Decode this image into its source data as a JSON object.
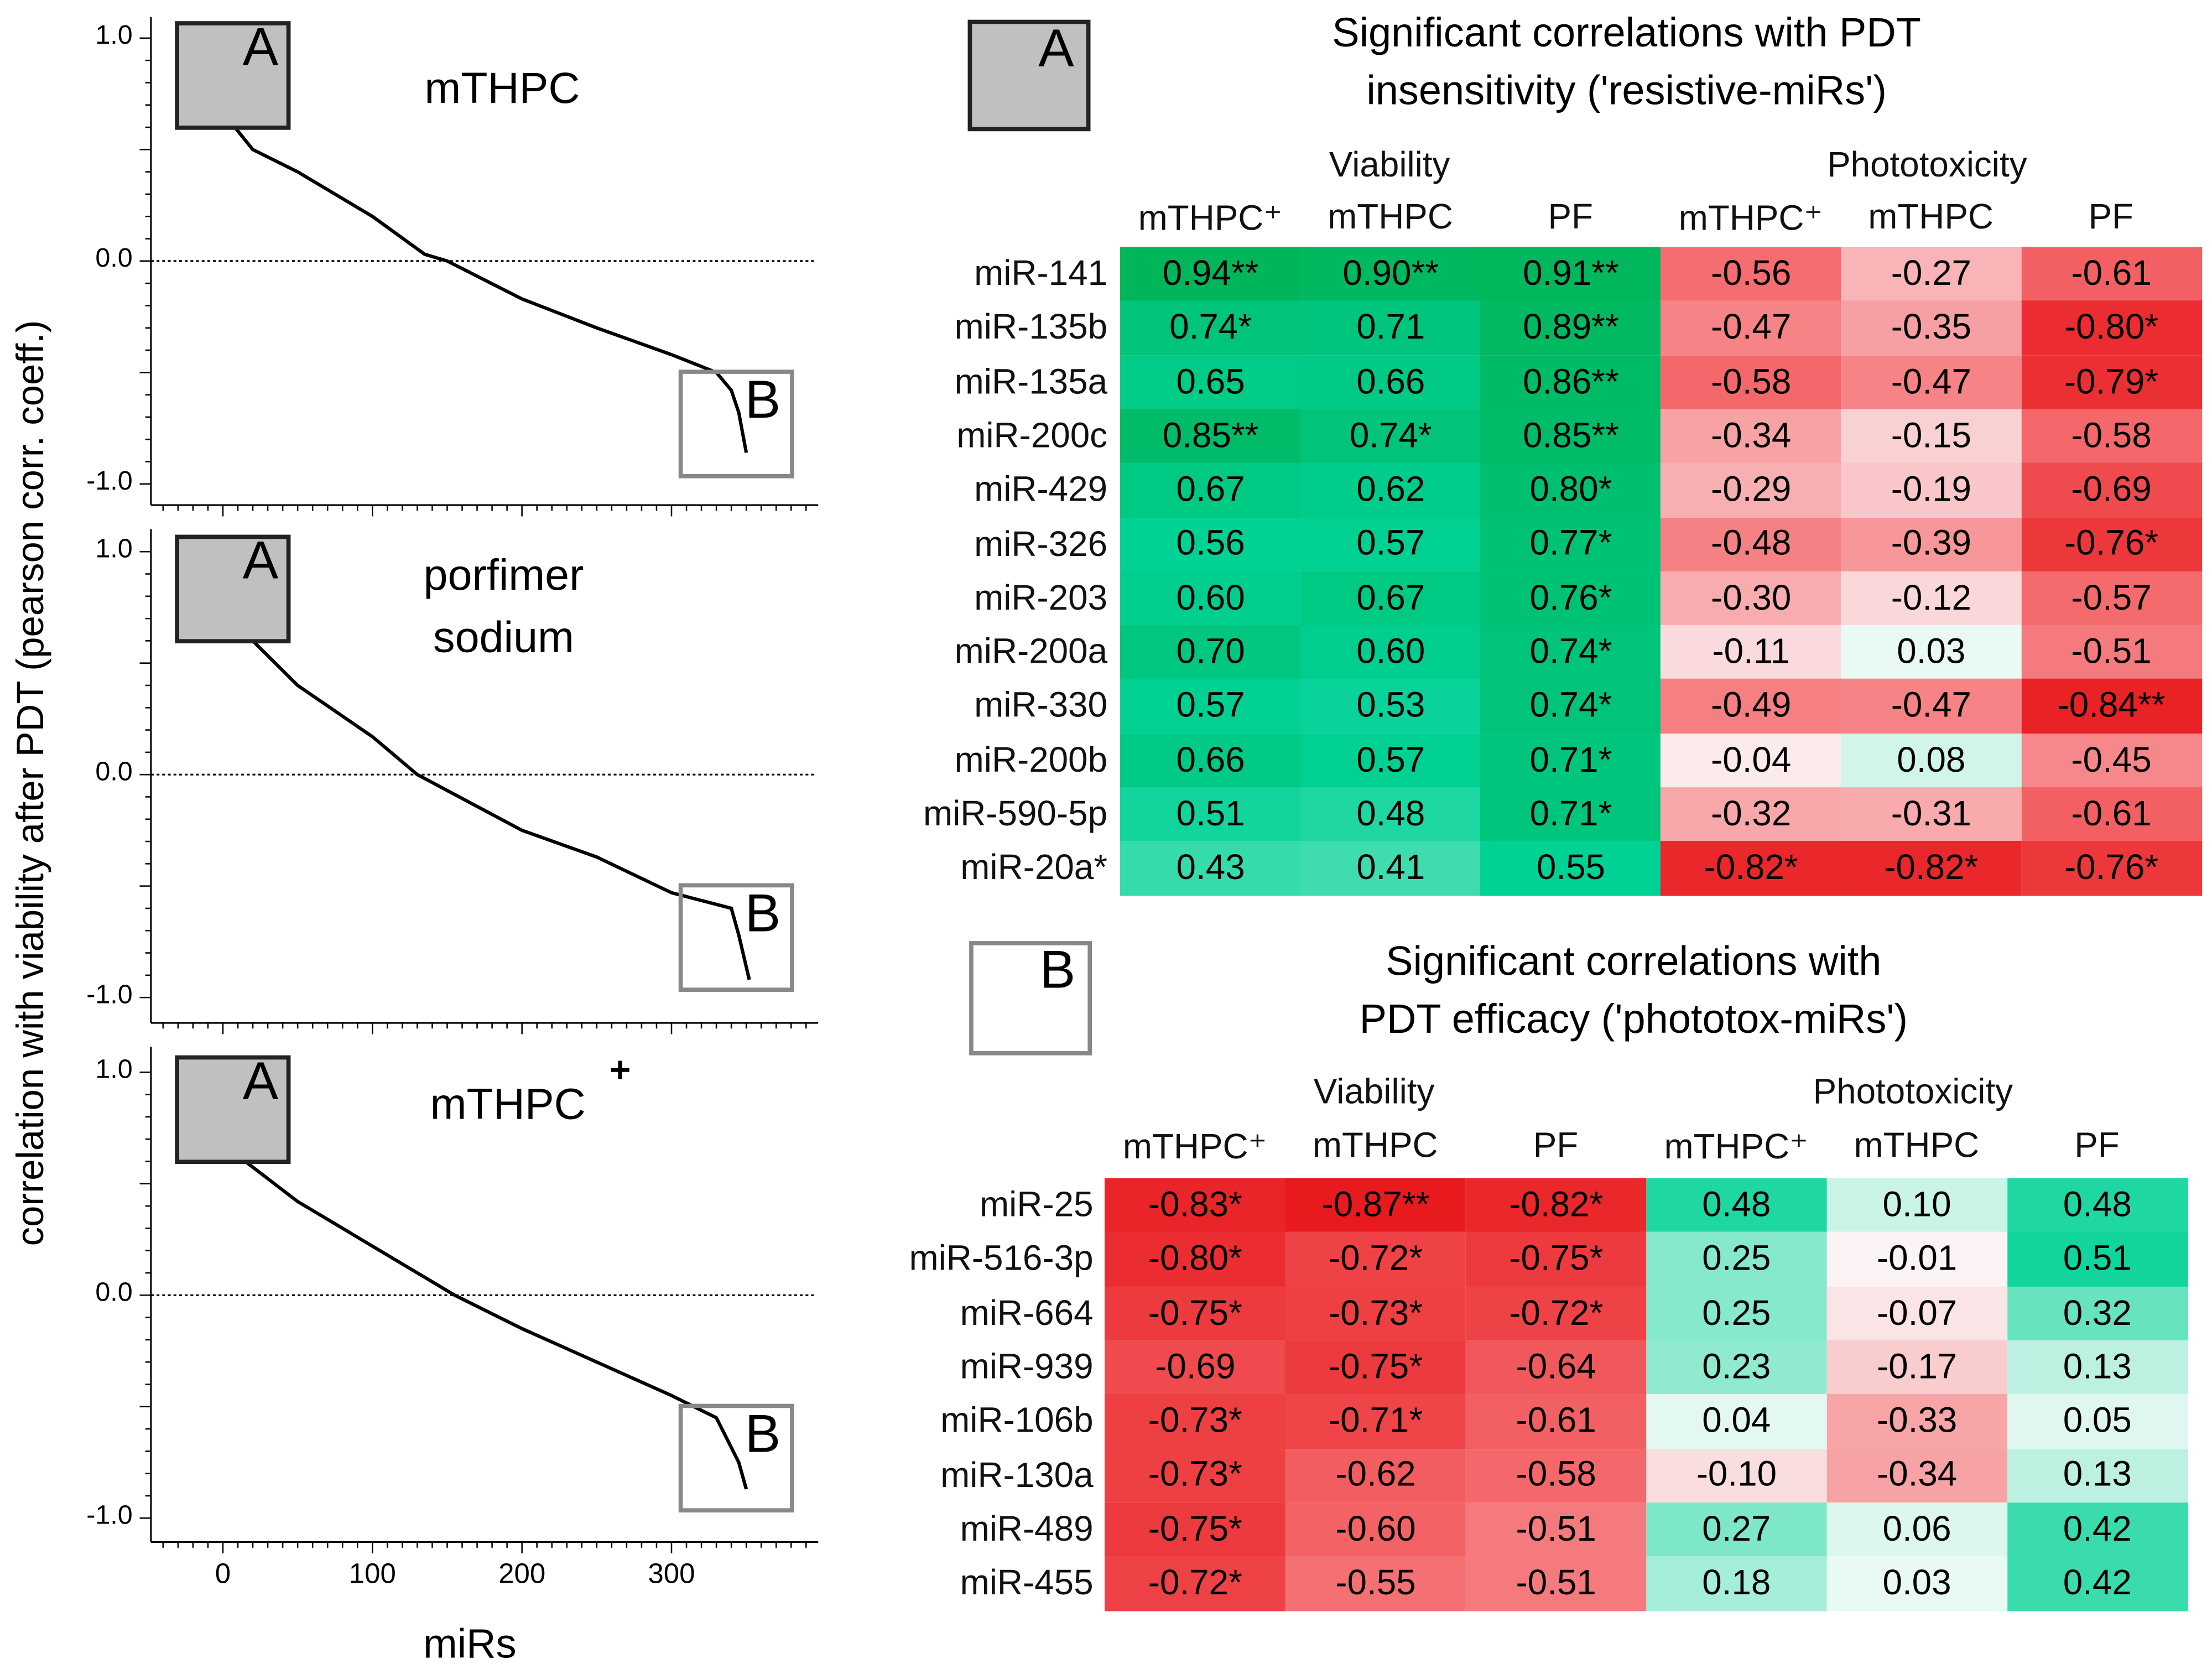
{
  "y_axis_label": "correlation with viability after PDT (pearson corr. coeff.)",
  "x_axis_label": "miRs",
  "chart_data": [
    {
      "type": "line",
      "title": "mTHPC",
      "xlim": [
        -45,
        400
      ],
      "ylim": [
        -1.1,
        1.1
      ],
      "xticks": [
        0,
        100,
        200,
        300
      ],
      "xtick_labels": [
        "0",
        "100",
        "200",
        "300"
      ],
      "yticks": [
        1,
        0,
        -1
      ],
      "ytick_labels": [
        "1.0",
        "0.0",
        "-1.0"
      ],
      "reference_line": 0,
      "box_a_label": "A",
      "box_b_label": "B",
      "x": [
        0,
        2,
        8,
        20,
        50,
        100,
        135,
        150,
        200,
        250,
        300,
        330,
        340,
        345,
        350
      ],
      "y": [
        0.92,
        0.75,
        0.6,
        0.5,
        0.4,
        0.2,
        0.03,
        0,
        -0.17,
        -0.3,
        -0.42,
        -0.5,
        -0.58,
        -0.68,
        -0.86
      ]
    },
    {
      "type": "line",
      "title": "porfimer sodium",
      "title_lines": [
        "porfimer",
        "sodium"
      ],
      "xlim": [
        -45,
        400
      ],
      "ylim": [
        -1.1,
        1.1
      ],
      "xticks": [
        0,
        100,
        200,
        300
      ],
      "yticks": [
        1,
        0,
        -1
      ],
      "ytick_labels": [
        "1.0",
        "0.0",
        "-1.0"
      ],
      "reference_line": 0,
      "box_a_label": "A",
      "box_b_label": "B",
      "x": [
        0,
        10,
        20,
        50,
        100,
        130,
        200,
        250,
        300,
        340,
        345,
        352
      ],
      "y": [
        0.9,
        0.7,
        0.6,
        0.4,
        0.17,
        0,
        -0.25,
        -0.37,
        -0.53,
        -0.6,
        -0.72,
        -0.92
      ]
    },
    {
      "type": "line",
      "title": "mTHPC",
      "title_sup": "+",
      "xlim": [
        -45,
        400
      ],
      "ylim": [
        -1.1,
        1.1
      ],
      "xticks": [
        0,
        100,
        200,
        300
      ],
      "xtick_labels": [
        "0",
        "100",
        "200",
        "300"
      ],
      "yticks": [
        1,
        0,
        -1
      ],
      "ytick_labels": [
        "1.0",
        "0.0",
        "-1.0"
      ],
      "reference_line": 0,
      "box_a_label": "A",
      "box_b_label": "B",
      "x": [
        0,
        3,
        15,
        50,
        100,
        155,
        200,
        250,
        300,
        330,
        345,
        350
      ],
      "y": [
        0.9,
        0.7,
        0.6,
        0.42,
        0.22,
        0,
        -0.15,
        -0.3,
        -0.45,
        -0.55,
        -0.75,
        -0.87
      ]
    },
    {
      "type": "heatmap",
      "box_label": "A",
      "title_lines": [
        "Significant correlations with PDT",
        "insensitivity ('resistive-miRs')"
      ],
      "groups": [
        "Viability",
        "Phototoxicity"
      ],
      "columns": [
        "mTHPC⁺",
        "mTHPC",
        "PF",
        "mTHPC⁺",
        "mTHPC",
        "PF"
      ],
      "rows": [
        "miR-141",
        "miR-135b",
        "miR-135a",
        "miR-200c",
        "miR-429",
        "miR-326",
        "miR-203",
        "miR-200a",
        "miR-330",
        "miR-200b",
        "miR-590-5p",
        "miR-20a*"
      ],
      "values": [
        [
          "0.94**",
          "0.90**",
          "0.91**",
          "-0.56",
          "-0.27",
          "-0.61"
        ],
        [
          "0.74*",
          "0.71",
          "0.89**",
          "-0.47",
          "-0.35",
          "-0.80*"
        ],
        [
          "0.65",
          "0.66",
          "0.86**",
          "-0.58",
          "-0.47",
          "-0.79*"
        ],
        [
          "0.85**",
          "0.74*",
          "0.85**",
          "-0.34",
          "-0.15",
          "-0.58"
        ],
        [
          "0.67",
          "0.62",
          "0.80*",
          "-0.29",
          "-0.19",
          "-0.69"
        ],
        [
          "0.56",
          "0.57",
          "0.77*",
          "-0.48",
          "-0.39",
          "-0.76*"
        ],
        [
          "0.60",
          "0.67",
          "0.76*",
          "-0.30",
          "-0.12",
          "-0.57"
        ],
        [
          "0.70",
          "0.60",
          "0.74*",
          "-0.11",
          "0.03",
          "-0.51"
        ],
        [
          "0.57",
          "0.53",
          "0.74*",
          "-0.49",
          "-0.47",
          "-0.84**"
        ],
        [
          "0.66",
          "0.57",
          "0.71*",
          "-0.04",
          "0.08",
          "-0.45"
        ],
        [
          "0.51",
          "0.48",
          "0.71*",
          "-0.32",
          "-0.31",
          "-0.61"
        ],
        [
          "0.43",
          "0.41",
          "0.55",
          "-0.82*",
          "-0.82*",
          "-0.76*"
        ]
      ]
    },
    {
      "type": "heatmap",
      "box_label": "B",
      "title_lines": [
        "Significant correlations with",
        "PDT efficacy ('phototox-miRs')"
      ],
      "groups": [
        "Viability",
        "Phototoxicity"
      ],
      "columns": [
        "mTHPC⁺",
        "mTHPC",
        "PF",
        "mTHPC⁺",
        "mTHPC",
        "PF"
      ],
      "rows": [
        "miR-25",
        "miR-516-3p",
        "miR-664",
        "miR-939",
        "miR-106b",
        "miR-130a",
        "miR-489",
        "miR-455"
      ],
      "values": [
        [
          "-0.83*",
          "-0.87**",
          "-0.82*",
          "0.48",
          "0.10",
          "0.48"
        ],
        [
          "-0.80*",
          "-0.72*",
          "-0.75*",
          "0.25",
          "-0.01",
          "0.51"
        ],
        [
          "-0.75*",
          "-0.73*",
          "-0.72*",
          "0.25",
          "-0.07",
          "0.32"
        ],
        [
          "-0.69",
          "-0.75*",
          "-0.64",
          "0.23",
          "-0.17",
          "0.13"
        ],
        [
          "-0.73*",
          "-0.71*",
          "-0.61",
          "0.04",
          "-0.33",
          "0.05"
        ],
        [
          "-0.73*",
          "-0.62",
          "-0.58",
          "-0.10",
          "-0.34",
          "0.13"
        ],
        [
          "-0.75*",
          "-0.60",
          "-0.51",
          "0.27",
          "0.06",
          "0.42"
        ],
        [
          "-0.72*",
          "-0.55",
          "-0.51",
          "0.18",
          "0.03",
          "0.42"
        ]
      ]
    }
  ]
}
